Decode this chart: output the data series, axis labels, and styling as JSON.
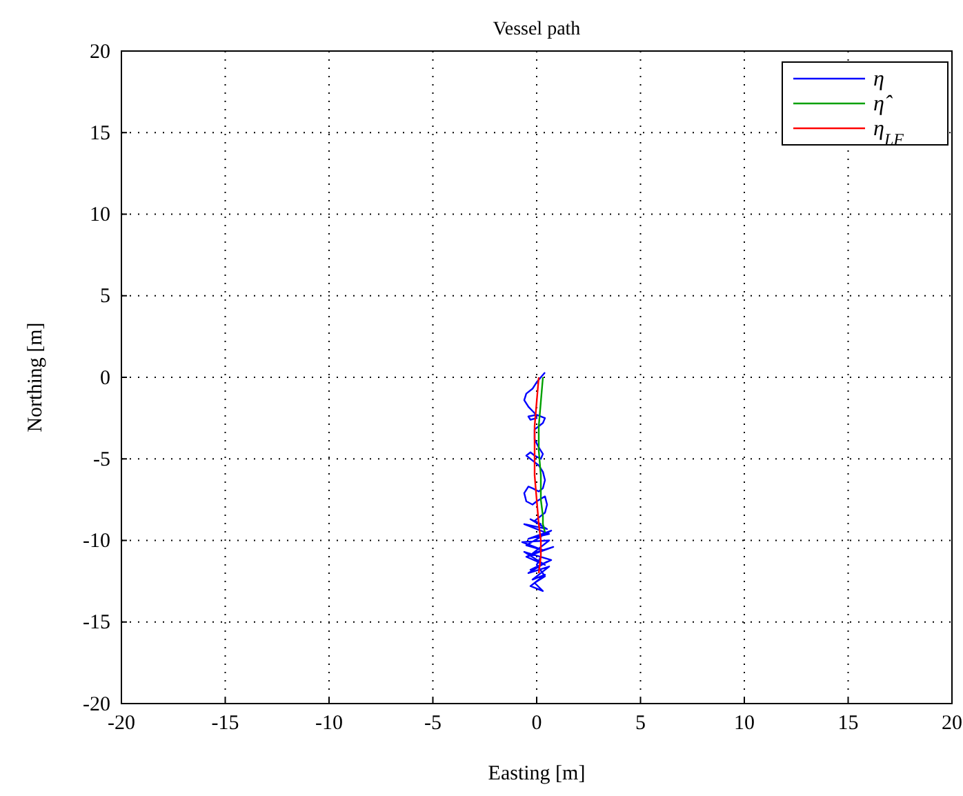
{
  "chart_data": {
    "type": "line",
    "title": "Vessel path",
    "xlabel": "Easting [m]",
    "ylabel": "Northing [m]",
    "xlim": [
      -20,
      20
    ],
    "ylim": [
      -20,
      20
    ],
    "xticks": [
      -20,
      -15,
      -10,
      -5,
      0,
      5,
      10,
      15,
      20
    ],
    "yticks": [
      -20,
      -15,
      -10,
      -5,
      0,
      5,
      10,
      15,
      20
    ],
    "grid": true,
    "legend": "top right",
    "line_style": "solid",
    "series": [
      {
        "name": "η",
        "color": "#0000ff",
        "x": [
          0.4,
          0.2,
          0.0,
          -0.2,
          -0.5,
          -0.6,
          -0.4,
          -0.1,
          0.0,
          -0.3,
          -0.4,
          0.0,
          0.4,
          0.3,
          -0.1,
          -0.1,
          0.1,
          0.3,
          0.2,
          -0.1,
          -0.3,
          -0.5,
          -0.2,
          0.1,
          0.3,
          0.4,
          0.3,
          0.1,
          -0.2,
          -0.4,
          -0.6,
          -0.5,
          -0.2,
          0.0,
          0.4,
          0.5,
          0.4,
          0.1,
          -0.1,
          0.2,
          -0.3,
          0.5,
          -0.6,
          0.6,
          -0.4,
          0.7,
          -0.5,
          0.3,
          -0.7,
          0.6,
          -0.2,
          0.8,
          -0.5,
          0.4,
          -0.6,
          0.7,
          -0.3,
          0.5,
          -0.4,
          0.6,
          -0.2,
          0.4,
          -0.3,
          0.3,
          -0.1,
          0.4,
          0.0,
          0.2
        ],
        "values": [
          0.3,
          0.0,
          -0.3,
          -0.7,
          -1.0,
          -1.4,
          -1.8,
          -2.2,
          -2.5,
          -2.6,
          -2.4,
          -2.3,
          -2.5,
          -2.8,
          -3.2,
          -3.8,
          -4.3,
          -4.7,
          -5.0,
          -4.8,
          -4.6,
          -4.8,
          -5.1,
          -5.4,
          -5.8,
          -6.3,
          -6.8,
          -7.0,
          -6.8,
          -6.7,
          -7.1,
          -7.6,
          -7.8,
          -7.6,
          -7.3,
          -7.8,
          -8.3,
          -8.6,
          -8.8,
          -9.0,
          -8.7,
          -9.3,
          -9.0,
          -9.6,
          -9.9,
          -9.4,
          -10.3,
          -10.6,
          -10.1,
          -10.0,
          -10.8,
          -10.4,
          -11.0,
          -11.5,
          -10.7,
          -11.2,
          -11.8,
          -11.3,
          -12.0,
          -11.6,
          -12.4,
          -12.1,
          -12.8,
          -13.1,
          -12.6,
          -12.2,
          -11.5,
          -11.0
        ]
      },
      {
        "name": "η̂",
        "color": "#00a000",
        "x": [
          0.3,
          0.2,
          0.1,
          0.1,
          0.2,
          0.2,
          0.3,
          0.3,
          0.4
        ],
        "values": [
          0.0,
          -1.5,
          -3.0,
          -4.5,
          -6.0,
          -7.5,
          -8.5,
          -9.0,
          -9.5
        ]
      },
      {
        "name": "η$_{LF}$",
        "color": "#ff0000",
        "x": [
          0.1,
          0.0,
          -0.1,
          -0.1,
          -0.1,
          0.0,
          0.1,
          0.2,
          0.2,
          0.1
        ],
        "values": [
          0.0,
          -1.5,
          -3.0,
          -4.5,
          -6.0,
          -7.5,
          -9.0,
          -10.0,
          -11.0,
          -12.0
        ]
      }
    ]
  }
}
